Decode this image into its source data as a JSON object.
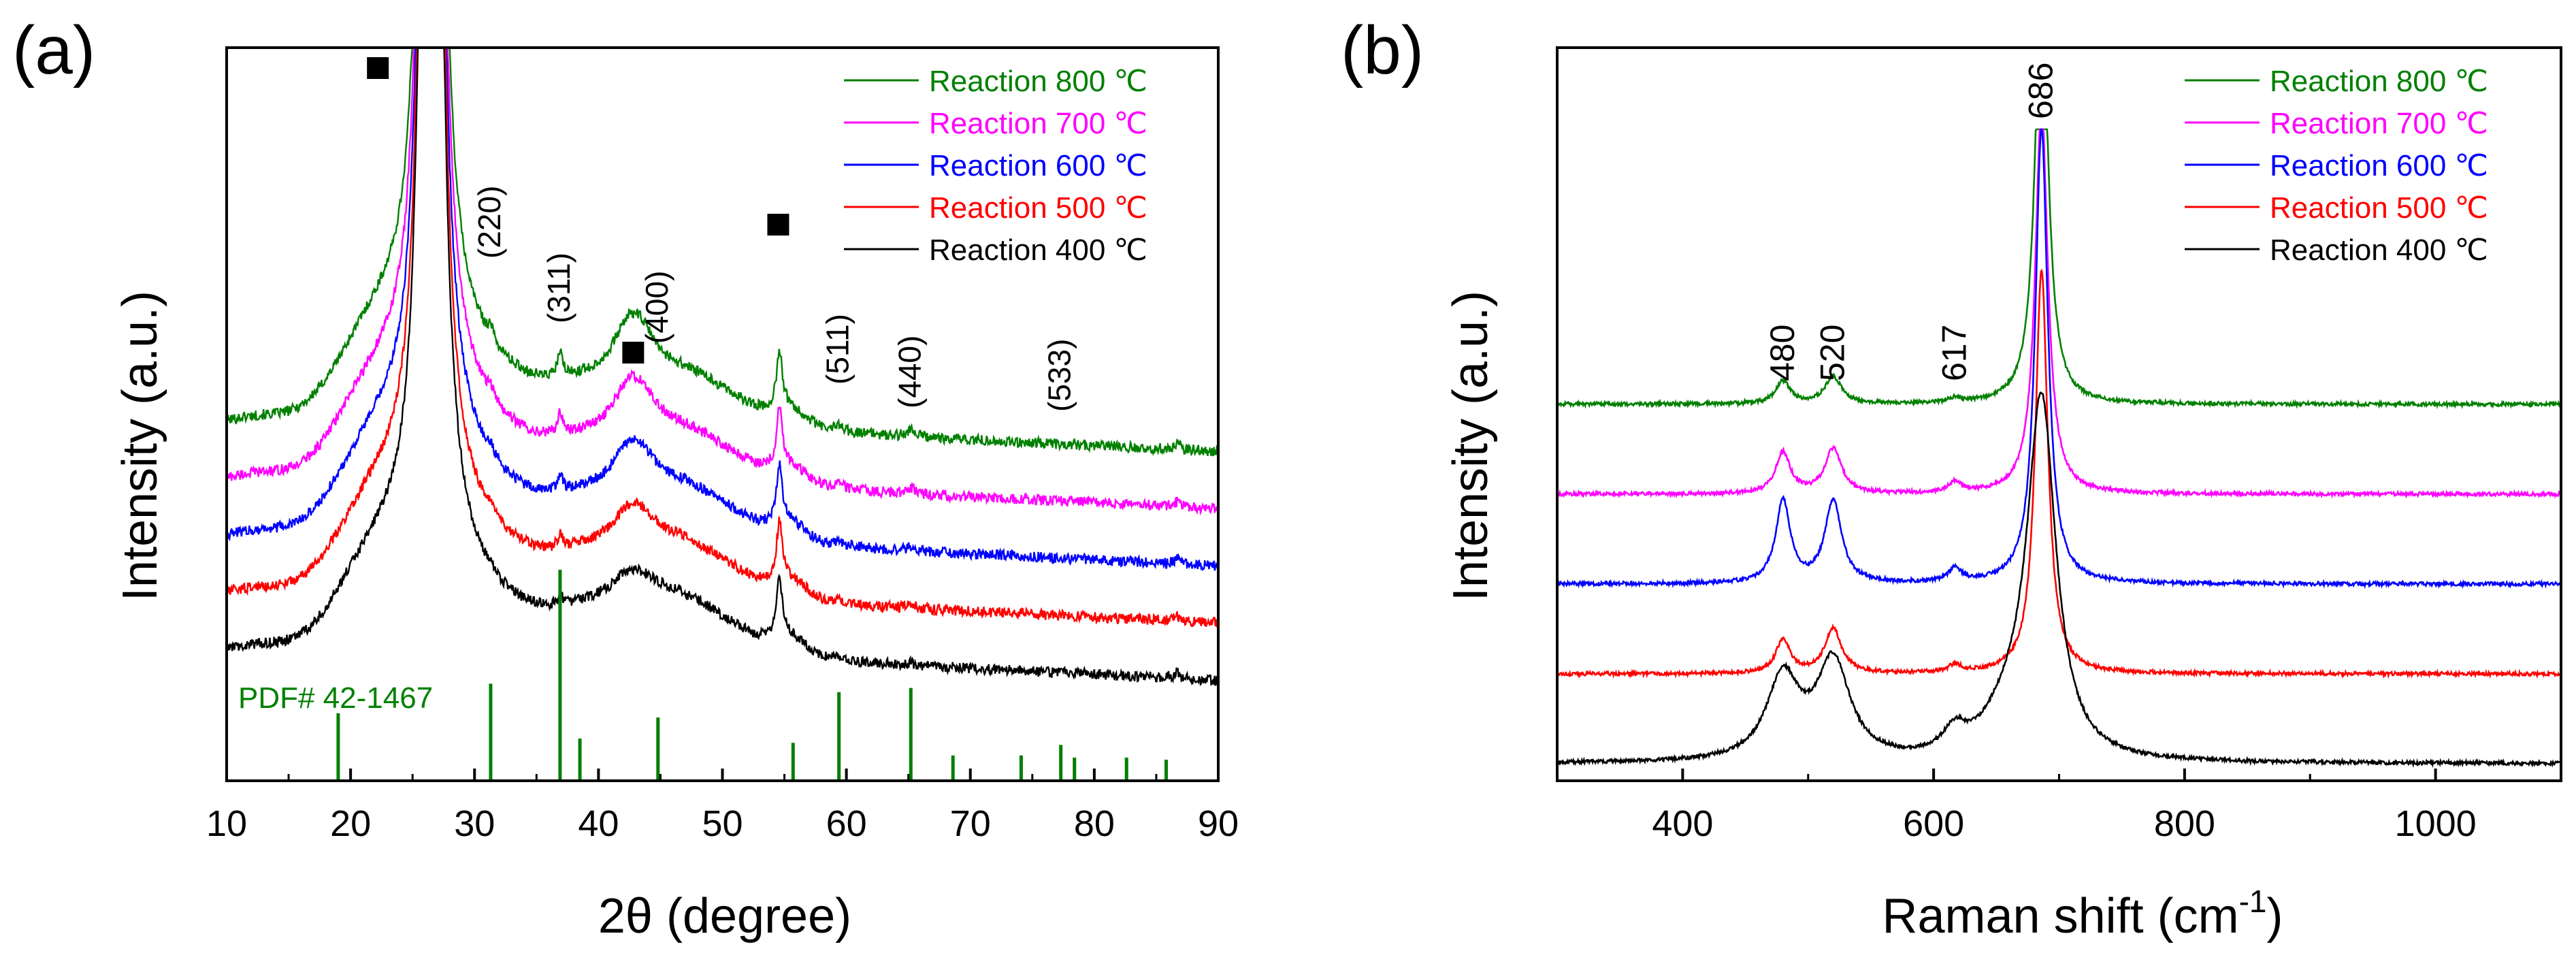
{
  "chart_data": [
    {
      "panel_label": "(a)",
      "type": "line",
      "title": "",
      "xlabel": "2θ (degree)",
      "ylabel": "Intensity (a.u.)",
      "xlim": [
        10,
        90
      ],
      "xticks": [
        "10",
        "20",
        "30",
        "40",
        "50",
        "60",
        "70",
        "80",
        "90"
      ],
      "grid": false,
      "legend_position": "top-right",
      "series": [
        {
          "name": "Reaction 800 ℃",
          "color": "#008000",
          "baseline": 6.6,
          "label_color": "#008000"
        },
        {
          "name": "Reaction 700 ℃",
          "color": "#ff00ff",
          "baseline": 5.4,
          "label_color": "#ff00ff"
        },
        {
          "name": "Reaction 600 ℃",
          "color": "#0000ff",
          "baseline": 4.2,
          "label_color": "#0000ff"
        },
        {
          "name": "Reaction 500 ℃",
          "color": "#ff0000",
          "baseline": 3.0,
          "label_color": "#ff0000"
        },
        {
          "name": "Reaction 400 ℃",
          "color": "#000000",
          "baseline": 1.8,
          "label_color": "#000000"
        }
      ],
      "reference": {
        "label": "PDF# 42-1467",
        "color": "#008000",
        "lines": [
          {
            "x": 19.0,
            "h": 0.32
          },
          {
            "x": 31.3,
            "h": 0.46
          },
          {
            "x": 36.9,
            "h": 1.0
          },
          {
            "x": 38.5,
            "h": 0.2
          },
          {
            "x": 44.8,
            "h": 0.3
          },
          {
            "x": 55.7,
            "h": 0.18
          },
          {
            "x": 59.4,
            "h": 0.42
          },
          {
            "x": 65.2,
            "h": 0.44
          },
          {
            "x": 68.6,
            "h": 0.12
          },
          {
            "x": 74.1,
            "h": 0.12
          },
          {
            "x": 77.3,
            "h": 0.17
          },
          {
            "x": 78.4,
            "h": 0.11
          },
          {
            "x": 82.6,
            "h": 0.11
          },
          {
            "x": 85.8,
            "h": 0.1
          }
        ]
      },
      "peak_labels": [
        {
          "text": "(220)",
          "x": 31.3
        },
        {
          "text": "(311)",
          "x": 36.9
        },
        {
          "text": "(400)",
          "x": 44.8
        },
        {
          "text": "(511)",
          "x": 59.4
        },
        {
          "text": "(440)",
          "x": 65.2
        },
        {
          "text": "(533)",
          "x": 77.3
        }
      ],
      "square_markers": [
        {
          "x": 22.2
        },
        {
          "x": 42.8
        },
        {
          "x": 54.5
        }
      ]
    },
    {
      "panel_label": "(b)",
      "type": "line",
      "title": "",
      "xlabel": "Raman shift (cm",
      "xlabel_sup": "-1",
      "xlabel_tail": ")",
      "ylabel": "Intensity (a.u.)",
      "xlim": [
        300,
        1100
      ],
      "xticks": [
        "400",
        "600",
        "800",
        "1000"
      ],
      "grid": false,
      "legend_position": "top-right",
      "series": [
        {
          "name": "Reaction 800 ℃",
          "color": "#008000",
          "baseline": 4.8,
          "label_color": "#008000"
        },
        {
          "name": "Reaction 700 ℃",
          "color": "#ff00ff",
          "baseline": 3.6,
          "label_color": "#ff00ff"
        },
        {
          "name": "Reaction 600 ℃",
          "color": "#0000ff",
          "baseline": 2.4,
          "label_color": "#0000ff"
        },
        {
          "name": "Reaction 500 ℃",
          "color": "#ff0000",
          "baseline": 1.2,
          "label_color": "#ff0000"
        },
        {
          "name": "Reaction 400 ℃",
          "color": "#000000",
          "baseline": 0.0,
          "label_color": "#000000"
        }
      ],
      "peak_labels": [
        {
          "text": "480",
          "x": 480
        },
        {
          "text": "520",
          "x": 520
        },
        {
          "text": "617",
          "x": 617
        },
        {
          "text": "686",
          "x": 686
        }
      ]
    }
  ]
}
